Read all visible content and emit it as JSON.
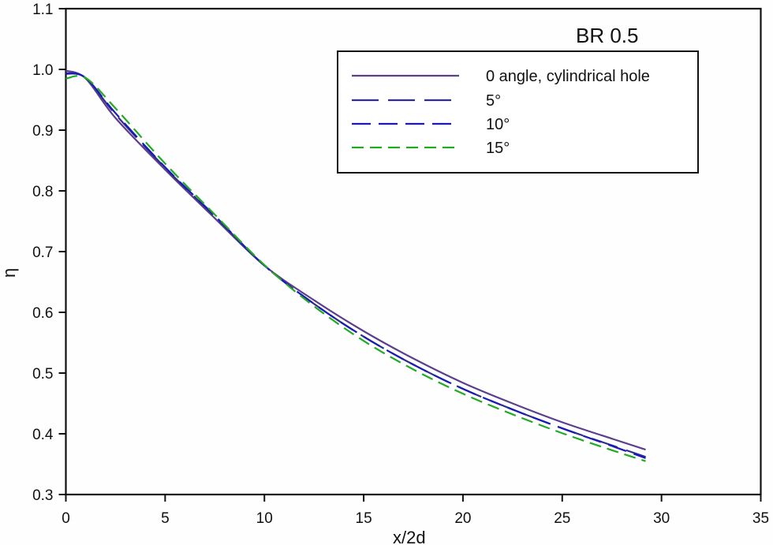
{
  "chart_data": {
    "type": "line",
    "title": "",
    "annotation": "BR 0.5",
    "xlabel": "x/2d",
    "ylabel": "η",
    "xlim": [
      0,
      35
    ],
    "ylim": [
      0.3,
      1.1
    ],
    "xticks": [
      "0",
      "5",
      "10",
      "15",
      "20",
      "25",
      "30",
      "35"
    ],
    "yticks": [
      "0.3",
      "0.4",
      "0.5",
      "0.6",
      "0.7",
      "0.8",
      "0.9",
      "1.0",
      "1.1"
    ],
    "grid": false,
    "legend_position": "upper right (inside)",
    "x": [
      0,
      1,
      2.5,
      5,
      7.5,
      10,
      12.5,
      15,
      17.5,
      20,
      22.5,
      25,
      27.5,
      29.2
    ],
    "series": [
      {
        "name": "0 angle, cylindrical hole",
        "color": "#5b3f8c",
        "dash": "solid",
        "values": [
          0.998,
          0.985,
          0.92,
          0.835,
          0.755,
          0.677,
          0.62,
          0.569,
          0.524,
          0.484,
          0.45,
          0.419,
          0.392,
          0.374
        ]
      },
      {
        "name": "5°",
        "color": "#2e2e8a",
        "dash": "long-dash",
        "values": [
          0.994,
          0.986,
          0.926,
          0.838,
          0.758,
          0.677,
          0.614,
          0.56,
          0.514,
          0.474,
          0.44,
          0.409,
          0.381,
          0.362
        ]
      },
      {
        "name": "10°",
        "color": "#1a1ab8",
        "dash": "medium-dash",
        "values": [
          0.993,
          0.986,
          0.928,
          0.839,
          0.759,
          0.677,
          0.614,
          0.56,
          0.514,
          0.474,
          0.44,
          0.409,
          0.38,
          0.36
        ]
      },
      {
        "name": "15°",
        "color": "#22aa22",
        "dash": "short-dash",
        "values": [
          0.985,
          0.986,
          0.936,
          0.845,
          0.761,
          0.678,
          0.61,
          0.553,
          0.506,
          0.466,
          0.432,
          0.401,
          0.373,
          0.355
        ]
      }
    ]
  }
}
